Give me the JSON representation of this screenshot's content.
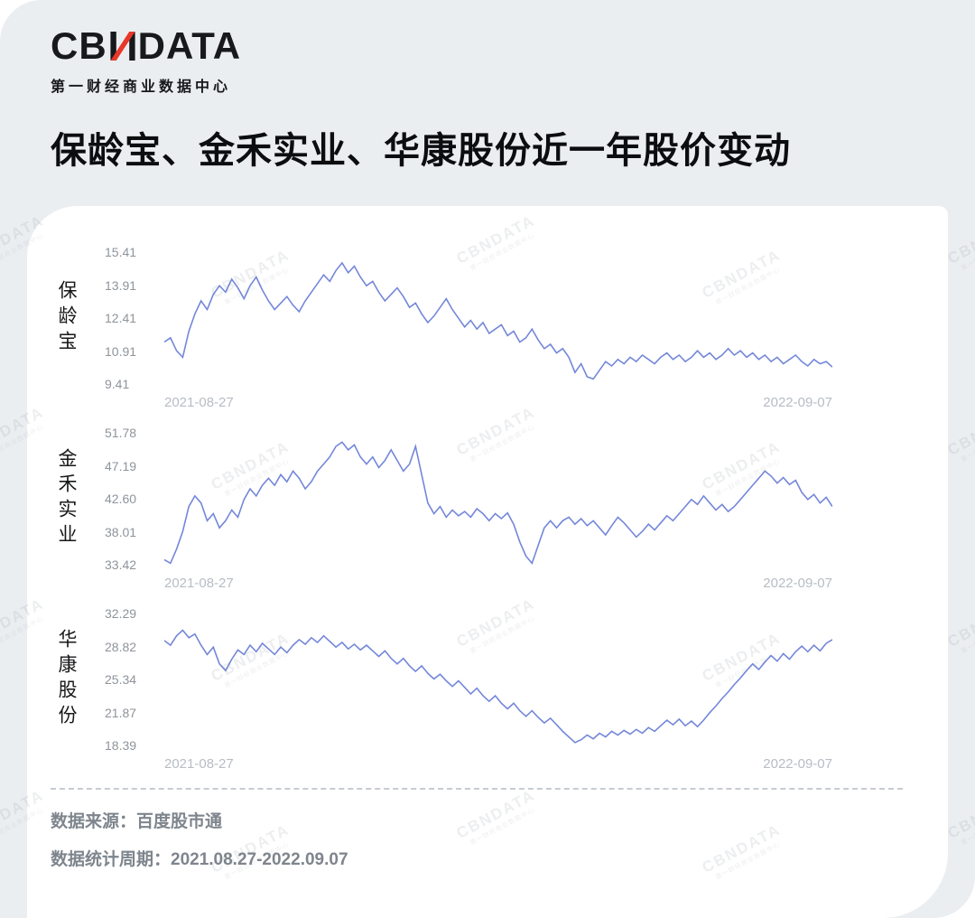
{
  "brand": {
    "logo_left": "CB",
    "logo_right": "DATA",
    "subtitle": "第一财经商业数据中心",
    "accent_color": "#e8382b",
    "text_color": "#17191d"
  },
  "title": "保龄宝、金禾实业、华康股份近一年股价变动",
  "watermark": {
    "line1": "CBNDATA",
    "line2": "第一财经商业数据中心"
  },
  "footer": {
    "source": "数据来源：百度股市通",
    "period": "数据统计周期：2021.08.27-2022.09.07"
  },
  "chart_data": [
    {
      "type": "line",
      "name": "保龄宝",
      "title": "保龄宝近一年股价",
      "xlabel": "",
      "ylabel": "",
      "ylim": [
        9.41,
        15.41
      ],
      "yticks": [
        "15.41",
        "13.91",
        "12.41",
        "10.91",
        "9.41"
      ],
      "x_start": "2021-08-27",
      "x_end": "2022-09-07",
      "line_color": "#7487d9",
      "values": [
        11.3,
        11.5,
        10.9,
        10.6,
        11.8,
        12.6,
        13.2,
        12.8,
        13.5,
        13.9,
        13.6,
        14.2,
        13.8,
        13.3,
        13.9,
        14.3,
        13.7,
        13.2,
        12.8,
        13.1,
        13.4,
        13.0,
        12.7,
        13.2,
        13.6,
        14.0,
        14.4,
        14.1,
        14.6,
        14.95,
        14.5,
        14.8,
        14.3,
        13.9,
        14.1,
        13.6,
        13.2,
        13.5,
        13.8,
        13.4,
        12.9,
        13.1,
        12.6,
        12.2,
        12.5,
        12.9,
        13.3,
        12.8,
        12.4,
        12.0,
        12.3,
        11.9,
        12.2,
        11.7,
        11.9,
        12.1,
        11.6,
        11.8,
        11.3,
        11.5,
        11.9,
        11.4,
        11.0,
        11.2,
        10.8,
        11.0,
        10.6,
        9.9,
        10.3,
        9.7,
        9.6,
        10.0,
        10.4,
        10.2,
        10.5,
        10.3,
        10.6,
        10.4,
        10.7,
        10.5,
        10.3,
        10.6,
        10.8,
        10.5,
        10.7,
        10.4,
        10.6,
        10.9,
        10.6,
        10.8,
        10.5,
        10.7,
        11.0,
        10.7,
        10.9,
        10.6,
        10.8,
        10.5,
        10.7,
        10.4,
        10.6,
        10.3,
        10.5,
        10.7,
        10.4,
        10.2,
        10.5,
        10.3,
        10.4,
        10.15
      ]
    },
    {
      "type": "line",
      "name": "金禾实业",
      "title": "金禾实业近一年股价",
      "xlabel": "",
      "ylabel": "",
      "ylim": [
        33.42,
        51.78
      ],
      "yticks": [
        "51.78",
        "47.19",
        "42.60",
        "38.01",
        "33.42"
      ],
      "x_start": "2021-08-27",
      "x_end": "2022-09-07",
      "line_color": "#7487d9",
      "values": [
        34.0,
        33.5,
        35.5,
        38.0,
        41.5,
        43.0,
        42.0,
        39.5,
        40.5,
        38.5,
        39.5,
        41.0,
        40.0,
        42.5,
        44.0,
        43.0,
        44.5,
        45.5,
        44.5,
        46.0,
        45.0,
        46.5,
        45.5,
        44.0,
        45.0,
        46.5,
        47.5,
        48.5,
        50.0,
        50.6,
        49.5,
        50.2,
        48.5,
        47.5,
        48.5,
        47.0,
        48.0,
        49.5,
        48.0,
        46.5,
        47.5,
        50.0,
        46.0,
        42.0,
        40.5,
        41.5,
        40.0,
        41.0,
        40.2,
        40.8,
        40.0,
        41.2,
        40.5,
        39.5,
        40.5,
        39.8,
        40.6,
        39.0,
        36.5,
        34.5,
        33.5,
        36.0,
        38.5,
        39.5,
        38.5,
        39.5,
        40.0,
        39.0,
        39.8,
        38.8,
        39.5,
        38.5,
        37.5,
        38.8,
        40.0,
        39.2,
        38.2,
        37.2,
        38.0,
        39.0,
        38.2,
        39.2,
        40.2,
        39.5,
        40.5,
        41.5,
        42.5,
        41.8,
        43.0,
        42.0,
        41.0,
        41.8,
        40.8,
        41.5,
        42.5,
        43.5,
        44.5,
        45.5,
        46.5,
        45.8,
        44.8,
        45.6,
        44.6,
        45.2,
        43.5,
        42.5,
        43.2,
        42.0,
        42.8,
        41.5
      ]
    },
    {
      "type": "line",
      "name": "华康股份",
      "title": "华康股份近一年股价",
      "xlabel": "",
      "ylabel": "",
      "ylim": [
        18.39,
        32.29
      ],
      "yticks": [
        "32.29",
        "28.82",
        "25.34",
        "21.87",
        "18.39"
      ],
      "x_start": "2021-08-27",
      "x_end": "2022-09-07",
      "line_color": "#7487d9",
      "values": [
        29.5,
        29.0,
        30.0,
        30.6,
        29.8,
        30.2,
        29.0,
        28.0,
        28.8,
        27.0,
        26.3,
        27.5,
        28.5,
        28.0,
        29.0,
        28.3,
        29.2,
        28.6,
        28.0,
        28.8,
        28.2,
        29.0,
        29.6,
        29.1,
        29.8,
        29.3,
        30.0,
        29.4,
        28.8,
        29.3,
        28.6,
        29.1,
        28.5,
        29.0,
        28.4,
        27.8,
        28.4,
        27.6,
        27.0,
        27.6,
        26.8,
        26.2,
        26.8,
        26.0,
        25.4,
        25.9,
        25.2,
        24.6,
        25.2,
        24.5,
        23.8,
        24.4,
        23.6,
        23.0,
        23.6,
        22.8,
        22.2,
        22.8,
        22.0,
        21.4,
        22.0,
        21.3,
        20.7,
        21.2,
        20.5,
        19.8,
        19.2,
        18.6,
        18.9,
        19.4,
        19.0,
        19.6,
        19.2,
        19.8,
        19.4,
        19.9,
        19.5,
        20.0,
        19.6,
        20.2,
        19.8,
        20.4,
        21.0,
        20.5,
        21.1,
        20.4,
        20.9,
        20.3,
        21.0,
        21.8,
        22.5,
        23.3,
        24.0,
        24.8,
        25.5,
        26.3,
        27.0,
        26.4,
        27.2,
        27.9,
        27.3,
        28.1,
        27.5,
        28.3,
        28.9,
        28.3,
        29.0,
        28.4,
        29.2,
        29.6
      ]
    }
  ]
}
